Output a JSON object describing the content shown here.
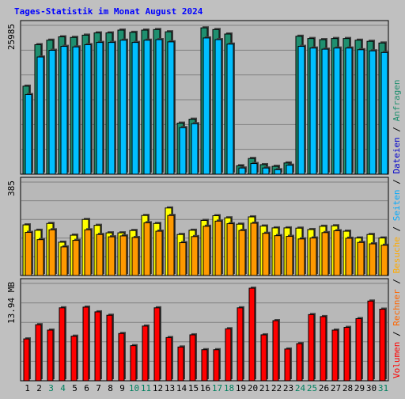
{
  "chart_data": [
    {
      "type": "bar",
      "title": "Tages-Statistik im Monat August 2024",
      "ylabel": "25985",
      "ymax": 25985,
      "series": [
        {
          "name": "Anfragen",
          "color": "#1f8f6f",
          "values": [
            15700,
            23100,
            23900,
            24500,
            24400,
            24800,
            25200,
            25200,
            25700,
            25300,
            25700,
            25800,
            25400,
            9100,
            9800,
            26100,
            25800,
            25000,
            1500,
            2800,
            1700,
            1400,
            2000,
            24600,
            24200,
            24000,
            24200,
            24200,
            23900,
            23700,
            23400
          ]
        },
        {
          "name": "Dateien",
          "color": "#00bfff",
          "values": [
            14200,
            20900,
            22100,
            22800,
            22700,
            23100,
            23500,
            23500,
            23900,
            23500,
            23900,
            24000,
            23600,
            8300,
            9000,
            24300,
            24000,
            23200,
            1100,
            1900,
            1100,
            800,
            1600,
            22800,
            22500,
            22300,
            22500,
            22500,
            22200,
            22000,
            21700
          ]
        }
      ],
      "categories": [
        "1",
        "2",
        "3",
        "4",
        "5",
        "6",
        "7",
        "8",
        "9",
        "10",
        "11",
        "12",
        "13",
        "14",
        "15",
        "16",
        "17",
        "18",
        "19",
        "20",
        "21",
        "22",
        "23",
        "24",
        "25",
        "26",
        "27",
        "28",
        "29",
        "30",
        "31"
      ],
      "legend": "right"
    },
    {
      "type": "bar",
      "ylabel": "385",
      "ymax": 385,
      "series": [
        {
          "name": "Seiten",
          "color": "#ffff00",
          "values": [
            216,
            193,
            222,
            142,
            172,
            239,
            214,
            182,
            182,
            192,
            256,
            222,
            288,
            175,
            193,
            235,
            255,
            246,
            219,
            250,
            211,
            203,
            203,
            202,
            196,
            210,
            212,
            189,
            160,
            175,
            160
          ]
        },
        {
          "name": "Besuche",
          "color": "#ff9900",
          "values": [
            184,
            153,
            195,
            122,
            150,
            195,
            175,
            165,
            169,
            162,
            225,
            189,
            256,
            140,
            166,
            210,
            232,
            221,
            192,
            223,
            180,
            170,
            167,
            156,
            160,
            183,
            191,
            159,
            141,
            135,
            129
          ]
        }
      ]
    },
    {
      "type": "bar",
      "ylabel": "13.94 MB",
      "ymax": 13.94,
      "series": [
        {
          "name": "Volumen",
          "color": "#ff0000",
          "values": [
            6.2,
            8.3,
            7.5,
            10.8,
            6.6,
            10.9,
            10.2,
            9.7,
            7.0,
            5.2,
            8.1,
            10.8,
            6.4,
            5.0,
            6.8,
            4.6,
            4.6,
            7.7,
            10.8,
            13.7,
            6.8,
            8.9,
            4.7,
            5.5,
            9.8,
            9.5,
            7.5,
            7.9,
            9.2,
            11.8,
            10.6
          ]
        }
      ],
      "legend_extra": "Rechner"
    }
  ],
  "legend_texts": {
    "top": "Anfragen",
    "slash": " / ",
    "files": "Dateien",
    "pages": "Seiten",
    "visits": "Besuche",
    "hosts": "Rechner",
    "volume": "Volumen"
  },
  "weekend_days": [
    3,
    4,
    10,
    11,
    17,
    18,
    24,
    25,
    31
  ],
  "colors": {
    "title": "#0000ff",
    "weekend_label": "#00805f",
    "weekday_label": "#000000",
    "background": "#c0c0c0",
    "panel": "#b8b8b8"
  }
}
